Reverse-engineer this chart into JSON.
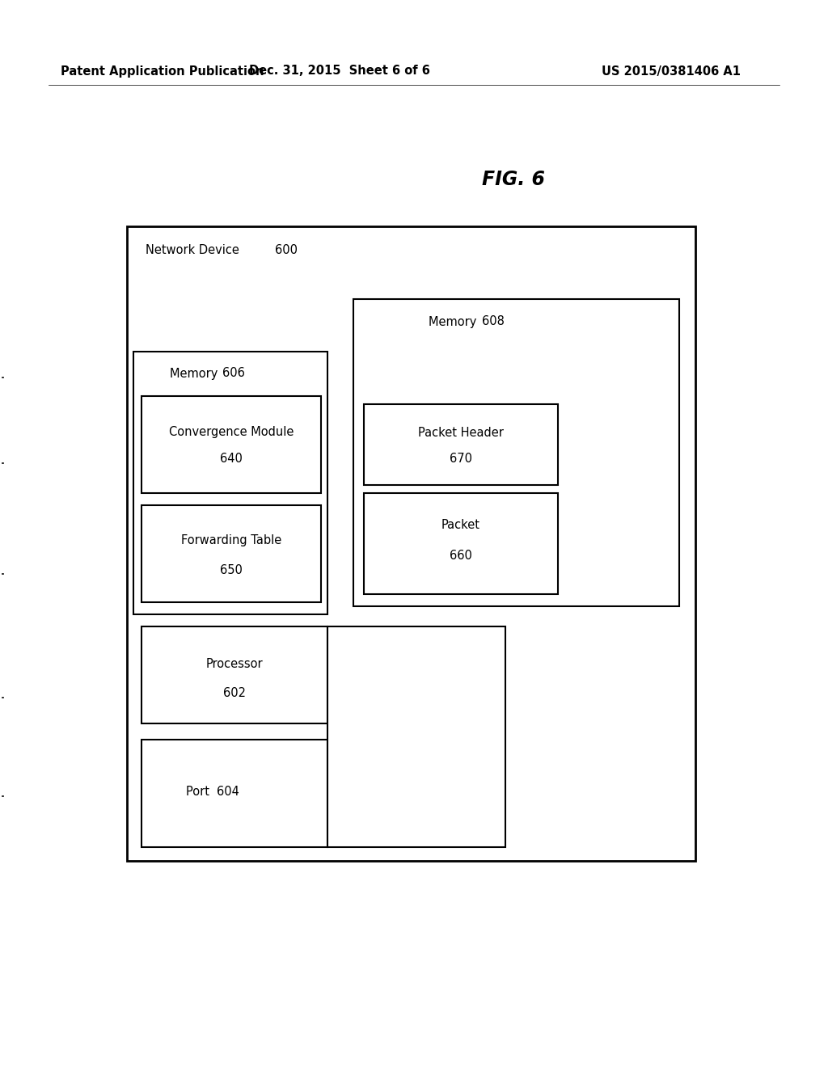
{
  "title": "FIG. 6",
  "header_left": "Patent Application Publication",
  "header_center": "Dec. 31, 2015  Sheet 6 of 6",
  "header_right": "US 2015/0381406 A1",
  "bg_color": "#ffffff",
  "text_color": "#000000",
  "fig_title_fontsize": 17,
  "header_fontsize": 10.5,
  "label_fontsize": 10.5,
  "nd_label": "Network Device ",
  "nd_num": "600",
  "mem608_label": "Memory ",
  "mem608_num": "608",
  "mem606_label": "Memory ",
  "mem606_num": "606",
  "conv_label": "Convergence Module",
  "conv_num": "640",
  "fwd_label": "Forwarding Table",
  "fwd_num": "650",
  "ph_label": "Packet Header",
  "ph_num": "670",
  "pkt_label": "Packet",
  "pkt_num": "660",
  "proc_label": "Processor",
  "proc_num": "602",
  "port_label": "Port ",
  "port_num": "604"
}
